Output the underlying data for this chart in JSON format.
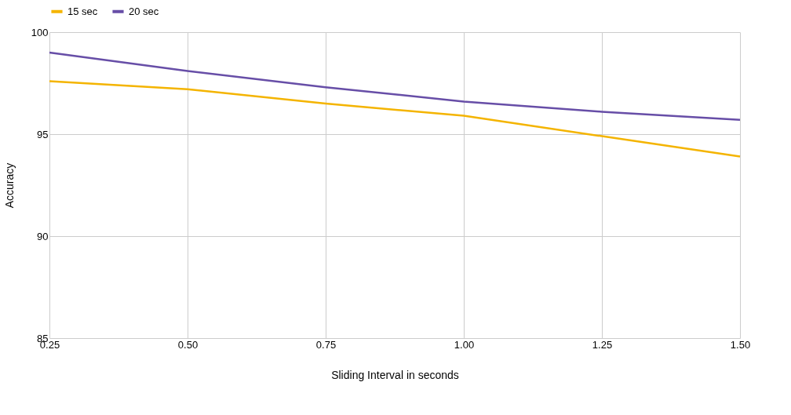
{
  "chart_data": {
    "type": "line",
    "xlabel": "Sliding Interval in seconds",
    "ylabel": "Accuracy",
    "x": [
      0.25,
      0.5,
      0.75,
      1.0,
      1.25,
      1.5
    ],
    "series": [
      {
        "name": "15 sec",
        "color": "#f4b400",
        "values": [
          97.6,
          97.2,
          96.5,
          95.9,
          94.9,
          93.9
        ]
      },
      {
        "name": "20 sec",
        "color": "#674ea7",
        "values": [
          99.0,
          98.1,
          97.3,
          96.6,
          96.1,
          95.7
        ]
      }
    ],
    "xlim": [
      0.25,
      1.5
    ],
    "ylim": [
      85,
      100
    ],
    "xticks": [
      0.25,
      {
        "value": 0.5,
        "label": "0.50"
      },
      0.75,
      {
        "value": 1.0,
        "label": "1.00"
      },
      1.25,
      {
        "value": 1.5,
        "label": "1.50"
      }
    ],
    "yticks": [
      85,
      90,
      95,
      100
    ],
    "grid": true,
    "legend": "top",
    "marker": "none",
    "line_style": "solid"
  }
}
